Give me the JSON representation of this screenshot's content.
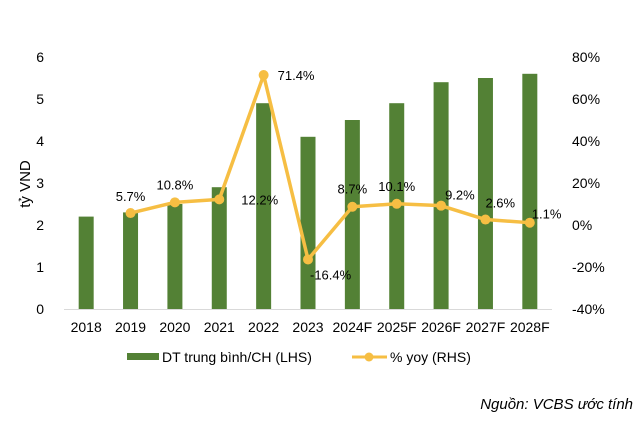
{
  "chart_data": {
    "type": "bar+line",
    "title": "",
    "categories": [
      "2018",
      "2019",
      "2020",
      "2021",
      "2022",
      "2023",
      "2024F",
      "2025F",
      "2026F",
      "2027F",
      "2028F"
    ],
    "series": [
      {
        "name": "DT trung bình/CH (LHS)",
        "type": "bar",
        "axis": "left",
        "color": "#538135",
        "values": [
          2.2,
          2.3,
          2.5,
          2.9,
          4.9,
          4.1,
          4.5,
          4.9,
          5.4,
          5.5,
          5.6
        ]
      },
      {
        "name": "% yoy (RHS)",
        "type": "line",
        "axis": "right",
        "color": "#F6BE43",
        "values": [
          null,
          5.7,
          10.8,
          12.2,
          71.4,
          -16.4,
          8.7,
          10.1,
          9.2,
          2.6,
          1.1
        ],
        "labels": [
          null,
          "5.7%",
          "10.8%",
          "12.2%",
          "71.4%",
          "-16.4%",
          "8.7%",
          "10.1%",
          "9.2%",
          "2.6%",
          "1.1%"
        ]
      }
    ],
    "ylabel": "tỷ VND",
    "ylim": [
      0,
      6
    ],
    "yticks": [
      "0",
      "1",
      "2",
      "3",
      "4",
      "5",
      "6"
    ],
    "y2lim": [
      -40,
      80
    ],
    "y2ticks": [
      "-40%",
      "-20%",
      "0%",
      "20%",
      "40%",
      "60%",
      "80%"
    ],
    "grid": false,
    "legend_position": "bottom"
  },
  "source_note": "Nguồn: VCBS ước tính"
}
